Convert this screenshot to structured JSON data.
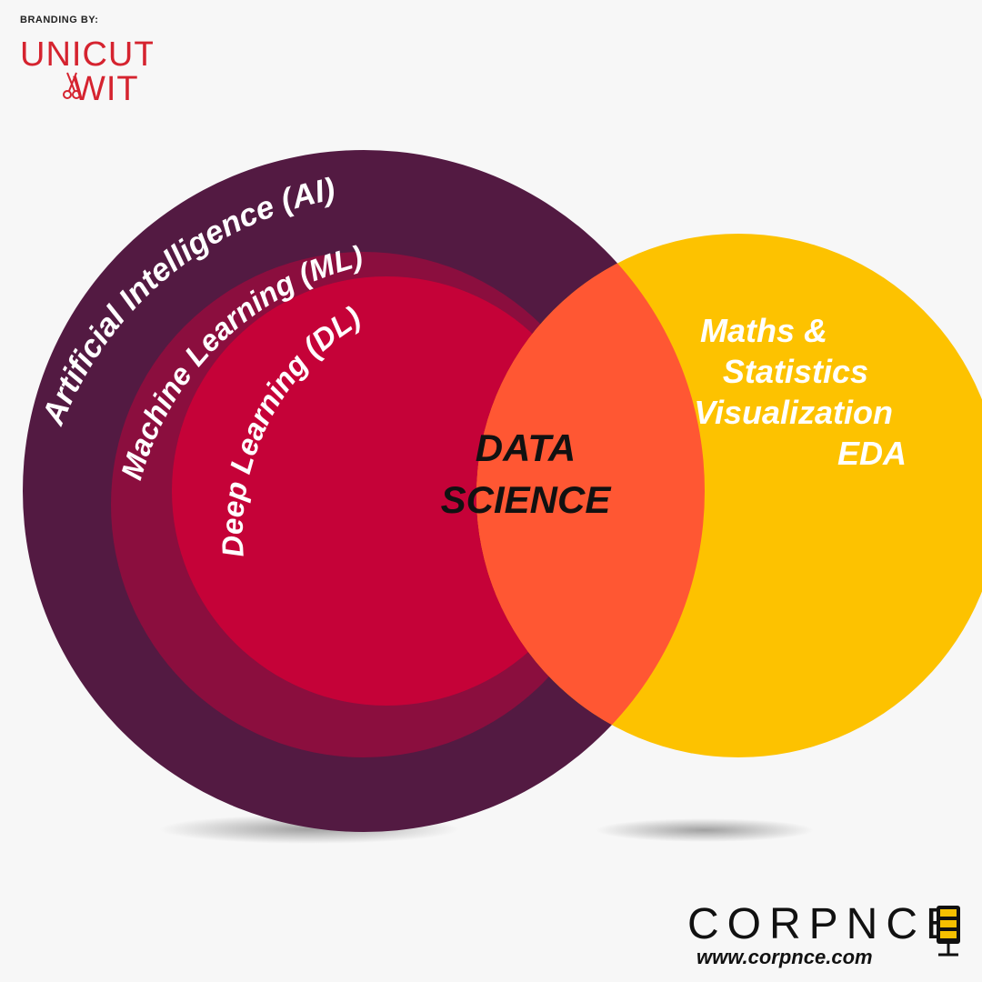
{
  "branding": {
    "label": "BRANDING BY:",
    "logo_text_top": "UNICUT",
    "logo_text_bottom": "WIT",
    "logo_color": "#d5232f"
  },
  "diagram": {
    "ai_label": "Artificial Intelligence (AI)",
    "ml_label": "Machine Learning (ML)",
    "dl_label": "Deep Learning (DL)",
    "center_label_line1": "DATA",
    "center_label_line2": "SCIENCE",
    "right_line1": "Maths &",
    "right_line2": "Statistics",
    "right_line3": "Visualization",
    "right_line4": "EDA",
    "colors": {
      "ai": "#531a42",
      "ml": "#8b0e3e",
      "dl": "#c50238",
      "right": "#fdc200",
      "overlap": "#ff5733",
      "label_text": "#ffffff",
      "center_text": "#111111"
    }
  },
  "footer": {
    "company_name": "CORPNCE",
    "url": "www.corpnce.com",
    "accent_color": "#f5c000"
  }
}
